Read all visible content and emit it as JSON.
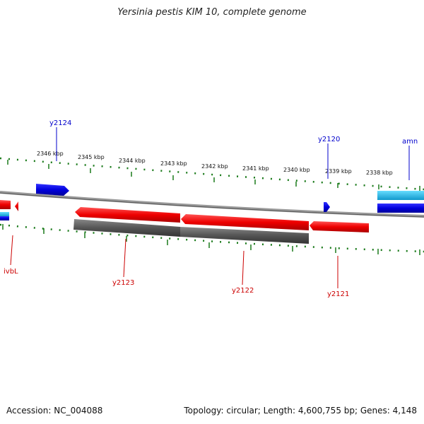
{
  "title": "Yersinia pestis KIM 10, complete genome",
  "footer": {
    "accession": "Accession: NC_004088",
    "summary": "Topology: circular; Length: 4,600,755 bp; Genes: 4,148"
  },
  "scale_labels": [
    "2346 kbp",
    "2345 kbp",
    "2344 kbp",
    "2343 kbp",
    "2342 kbp",
    "2341 kbp",
    "2340 kbp",
    "2339 kbp",
    "2338 kbp"
  ],
  "genes_forward": [
    {
      "label": "y2124",
      "color": "#0000cc"
    },
    {
      "label": "y2120",
      "color": "#0000cc"
    },
    {
      "label": "amn",
      "color": "#0000cc"
    }
  ],
  "genes_reverse": [
    {
      "label": "ivbL",
      "color": "#cc0000"
    },
    {
      "label": "y2123",
      "color": "#cc0000"
    },
    {
      "label": "y2122",
      "color": "#cc0000"
    },
    {
      "label": "y2121",
      "color": "#cc0000"
    }
  ],
  "colors": {
    "forward_gene": "#0000dd",
    "reverse_gene": "#ee0000",
    "forward_label": "#0000cc",
    "reverse_label": "#cc0000",
    "tick": "#1a7a1a",
    "backbone": "#888888",
    "rna": "#33bbee",
    "pseudo": "#555555"
  }
}
